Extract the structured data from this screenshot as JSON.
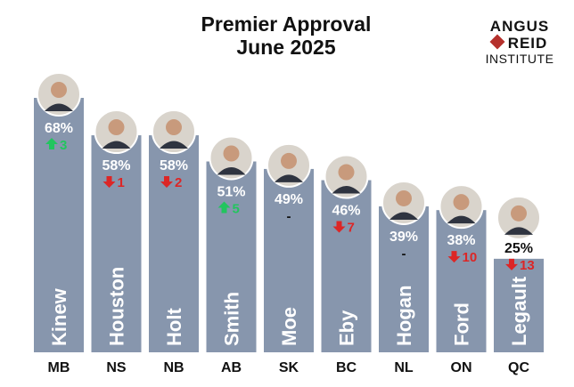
{
  "logo": {
    "line1": "ANGUS",
    "line2": "REID",
    "line3": "INSTITUTE",
    "leaf_icon": "maple-leaf-icon"
  },
  "colors": {
    "bar": "#8796ad",
    "up": "#22c55e",
    "down": "#dc2626",
    "text": "#111111",
    "inbar_text": "#ffffff"
  },
  "chart_data": {
    "type": "bar",
    "title": "Premier Approval",
    "subtitle": "June 2025",
    "xlabel": "",
    "ylabel": "",
    "ylim": [
      0,
      75
    ],
    "grid": false,
    "categories": [
      "MB",
      "NS",
      "NB",
      "AB",
      "SK",
      "BC",
      "NL",
      "ON",
      "QC"
    ],
    "premiers": [
      "Kinew",
      "Houston",
      "Holt",
      "Smith",
      "Moe",
      "Eby",
      "Hogan",
      "Ford",
      "Legault"
    ],
    "values": [
      68,
      58,
      58,
      51,
      49,
      46,
      39,
      38,
      25
    ],
    "value_labels": [
      "68%",
      "58%",
      "58%",
      "51%",
      "49%",
      "46%",
      "39%",
      "38%",
      "25%"
    ],
    "changes": [
      {
        "dir": "up",
        "label": "3"
      },
      {
        "dir": "down",
        "label": "1"
      },
      {
        "dir": "down",
        "label": "2"
      },
      {
        "dir": "up",
        "label": "5"
      },
      {
        "dir": "none",
        "label": "-"
      },
      {
        "dir": "down",
        "label": "7"
      },
      {
        "dir": "none",
        "label": "-"
      },
      {
        "dir": "down",
        "label": "10"
      },
      {
        "dir": "down",
        "label": "13"
      }
    ]
  }
}
